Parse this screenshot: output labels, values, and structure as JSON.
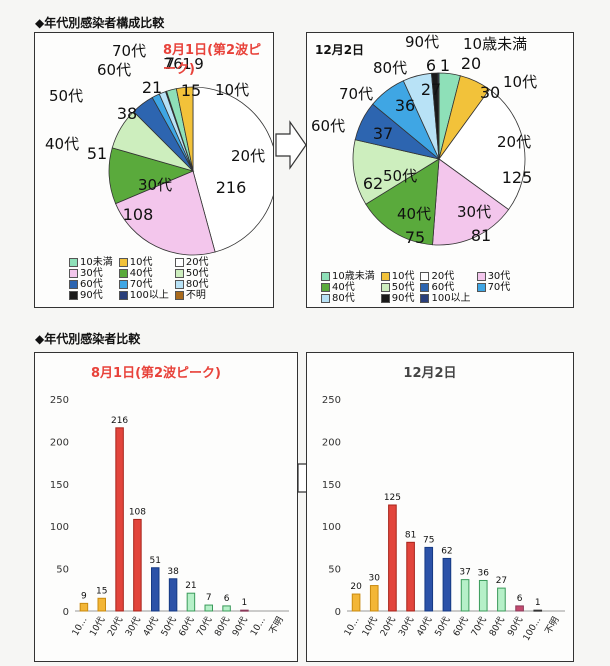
{
  "colors": {
    "u10": "#8ee0b8",
    "s10": "#f2c23a",
    "s20": "#ffffff",
    "s30": "#f3c6ec",
    "s40": "#5aaa3c",
    "s50": "#cdeebe",
    "s60": "#2d65b0",
    "s70": "#3fa6e4",
    "s80": "#b8e2f6",
    "s90": "#1a1a1a",
    "s100": "#2a3f7a",
    "unknown": "#a96a1c",
    "red_text": "#e8423a"
  },
  "titles": {
    "composition": "◆年代別感染者構成比較",
    "comparison": "◆年代別感染者比較"
  },
  "pie_aug": {
    "label": "8月1日(第2波ピーク)",
    "legend": [
      {
        "key": "u10",
        "text": "10未満"
      },
      {
        "key": "s10",
        "text": "10代"
      },
      {
        "key": "s20",
        "text": "20代"
      },
      {
        "key": "s30",
        "text": "30代"
      },
      {
        "key": "s40",
        "text": "40代"
      },
      {
        "key": "s50",
        "text": "50代"
      },
      {
        "key": "s60",
        "text": "60代"
      },
      {
        "key": "s70",
        "text": "70代"
      },
      {
        "key": "s80",
        "text": "80代"
      },
      {
        "key": "s90",
        "text": "90代"
      },
      {
        "key": "s100",
        "text": "100以上"
      },
      {
        "key": "unknown",
        "text": "不明"
      }
    ]
  },
  "pie_dec": {
    "label": "12月2日",
    "legend": [
      {
        "key": "u10",
        "text": "10歳未満"
      },
      {
        "key": "s10",
        "text": "10代"
      },
      {
        "key": "s20",
        "text": "20代"
      },
      {
        "key": "s30",
        "text": "30代"
      },
      {
        "key": "s40",
        "text": "40代"
      },
      {
        "key": "s50",
        "text": "50代"
      },
      {
        "key": "s60",
        "text": "60代"
      },
      {
        "key": "s70",
        "text": "70代"
      },
      {
        "key": "s80",
        "text": "80代"
      },
      {
        "key": "s90",
        "text": "90代"
      },
      {
        "key": "s100",
        "text": "100以上"
      }
    ]
  },
  "chart_data": [
    {
      "type": "pie",
      "title": "8月1日(第2波ピーク)",
      "slices": [
        {
          "key": "s20",
          "name": "20代",
          "value": 216
        },
        {
          "key": "s30",
          "name": "30代",
          "value": 108
        },
        {
          "key": "s40",
          "name": "40代",
          "value": 51
        },
        {
          "key": "s50",
          "name": "50代",
          "value": 38
        },
        {
          "key": "s60",
          "name": "60代",
          "value": 21
        },
        {
          "key": "s70",
          "name": "70代",
          "value": 7
        },
        {
          "key": "s80",
          "name": "80代",
          "value": 6
        },
        {
          "key": "s90",
          "name": "",
          "value": 1
        },
        {
          "key": "u10",
          "name": "",
          "value": 9
        },
        {
          "key": "s10",
          "name": "10代",
          "value": 15
        }
      ],
      "value_labels": {
        "s20": "216",
        "s30": "108",
        "s40": "51",
        "s50": "38",
        "s60": "21",
        "s70": "7",
        "s80": "6",
        "s90": "1",
        "u10": "9",
        "s10": "15"
      }
    },
    {
      "type": "pie",
      "title": "12月2日",
      "slices": [
        {
          "key": "u10",
          "name": "10歳未満",
          "value": 20
        },
        {
          "key": "s10",
          "name": "10代",
          "value": 30
        },
        {
          "key": "s20",
          "name": "20代",
          "value": 125
        },
        {
          "key": "s30",
          "name": "30代",
          "value": 81
        },
        {
          "key": "s40",
          "name": "40代",
          "value": 75
        },
        {
          "key": "s50",
          "name": "50代",
          "value": 62
        },
        {
          "key": "s60",
          "name": "60代",
          "value": 37
        },
        {
          "key": "s70",
          "name": "70代",
          "value": 36
        },
        {
          "key": "s80",
          "name": "80代",
          "value": 27
        },
        {
          "key": "s90",
          "name": "90代",
          "value": 6
        },
        {
          "key": "s100",
          "name": "",
          "value": 1
        }
      ]
    },
    {
      "type": "bar",
      "title": "8月1日(第2波ピーク)",
      "categories": [
        "10...",
        "10代",
        "20代",
        "30代",
        "40代",
        "50代",
        "60代",
        "70代",
        "80代",
        "90代",
        "10...",
        "不明"
      ],
      "keys": [
        "u10",
        "s10",
        "s20",
        "s30",
        "s40",
        "s50",
        "s60",
        "s70",
        "s80",
        "s90",
        "s100",
        "unknown"
      ],
      "values": [
        9,
        15,
        216,
        108,
        51,
        38,
        21,
        7,
        6,
        1,
        null,
        null
      ],
      "ylim": [
        0,
        250
      ],
      "yticks": [
        0,
        50,
        100,
        150,
        200,
        250
      ]
    },
    {
      "type": "bar",
      "title": "12月2日",
      "categories": [
        "10...",
        "10代",
        "20代",
        "30代",
        "40代",
        "50代",
        "60代",
        "70代",
        "80代",
        "90代",
        "100...",
        "不明"
      ],
      "keys": [
        "u10",
        "s10",
        "s20",
        "s30",
        "s40",
        "s50",
        "s60",
        "s70",
        "s80",
        "s90",
        "s100",
        "unknown"
      ],
      "values": [
        20,
        30,
        125,
        81,
        75,
        62,
        37,
        36,
        27,
        6,
        1,
        null
      ],
      "ylim": [
        0,
        250
      ],
      "yticks": [
        0,
        50,
        100,
        150,
        200,
        250
      ]
    }
  ]
}
